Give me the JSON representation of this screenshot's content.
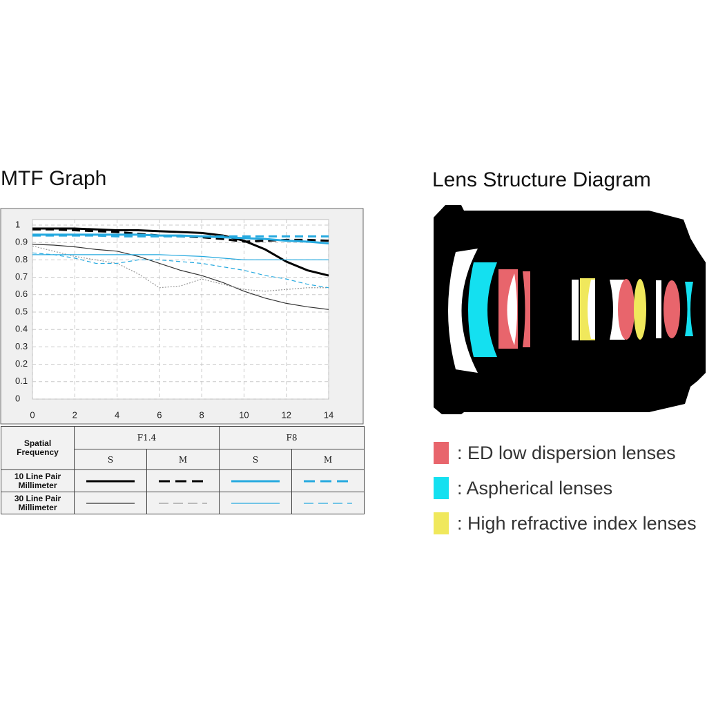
{
  "chart_data": {
    "type": "line",
    "title": "MTF Graph",
    "x": [
      0,
      1,
      2,
      3,
      4,
      5,
      6,
      7,
      8,
      9,
      10,
      11,
      12,
      13,
      14
    ],
    "xlim": [
      0,
      14
    ],
    "xticks": [
      0,
      2,
      4,
      6,
      8,
      10,
      12,
      14
    ],
    "ylim": [
      0,
      1
    ],
    "yticks": [
      0,
      0.1,
      0.2,
      0.3,
      0.4,
      0.5,
      0.6,
      0.7,
      0.8,
      0.9,
      1
    ],
    "grid": true,
    "series": [
      {
        "color": "#000000",
        "style": "solid",
        "width": 3,
        "values": [
          0.98,
          0.98,
          0.98,
          0.975,
          0.97,
          0.97,
          0.965,
          0.96,
          0.955,
          0.94,
          0.91,
          0.86,
          0.79,
          0.74,
          0.71
        ]
      },
      {
        "color": "#000000",
        "style": "dashed",
        "width": 3,
        "values": [
          0.975,
          0.975,
          0.97,
          0.965,
          0.96,
          0.95,
          0.94,
          0.935,
          0.93,
          0.92,
          0.905,
          0.91,
          0.915,
          0.915,
          0.91
        ]
      },
      {
        "color": "#25a9df",
        "style": "solid",
        "width": 3,
        "values": [
          0.945,
          0.945,
          0.945,
          0.945,
          0.945,
          0.945,
          0.94,
          0.94,
          0.935,
          0.93,
          0.925,
          0.92,
          0.91,
          0.905,
          0.895
        ]
      },
      {
        "color": "#25a9df",
        "style": "dashed",
        "width": 3,
        "values": [
          0.94,
          0.94,
          0.94,
          0.94,
          0.935,
          0.935,
          0.935,
          0.935,
          0.935,
          0.935,
          0.935,
          0.935,
          0.935,
          0.935,
          0.935
        ]
      },
      {
        "color": "#333333",
        "style": "solid",
        "width": 1.2,
        "values": [
          0.89,
          0.885,
          0.875,
          0.86,
          0.85,
          0.82,
          0.78,
          0.74,
          0.71,
          0.67,
          0.62,
          0.58,
          0.55,
          0.53,
          0.515
        ]
      },
      {
        "color": "#999999",
        "style": "dotted",
        "width": 1.2,
        "values": [
          0.88,
          0.85,
          0.82,
          0.8,
          0.78,
          0.72,
          0.64,
          0.65,
          0.69,
          0.66,
          0.63,
          0.62,
          0.63,
          0.64,
          0.64
        ]
      },
      {
        "color": "#25a9df",
        "style": "solid",
        "width": 1.2,
        "values": [
          0.83,
          0.83,
          0.83,
          0.83,
          0.83,
          0.83,
          0.83,
          0.825,
          0.82,
          0.81,
          0.8,
          0.8,
          0.8,
          0.8,
          0.8
        ]
      },
      {
        "color": "#25a9df",
        "style": "dashed",
        "width": 1.2,
        "values": [
          0.84,
          0.83,
          0.81,
          0.78,
          0.78,
          0.8,
          0.8,
          0.79,
          0.78,
          0.76,
          0.74,
          0.71,
          0.69,
          0.66,
          0.64
        ]
      }
    ]
  },
  "legend_table": {
    "header": "Spatial Frequency",
    "apertures": [
      "F1.4",
      "F8"
    ],
    "directions": [
      "S",
      "M",
      "S",
      "M"
    ],
    "rows": [
      "10 Line Pair Millimeter",
      "30 Line Pair Millimeter"
    ]
  },
  "lens_diagram": {
    "title": "Lens Structure Diagram",
    "legend": [
      {
        "label": ": ED low dispersion lenses",
        "color": "#e8656c"
      },
      {
        "label": ": Aspherical lenses",
        "color": "#14e0f0"
      },
      {
        "label": ": High refractive index lenses",
        "color": "#f0e85c"
      }
    ]
  }
}
